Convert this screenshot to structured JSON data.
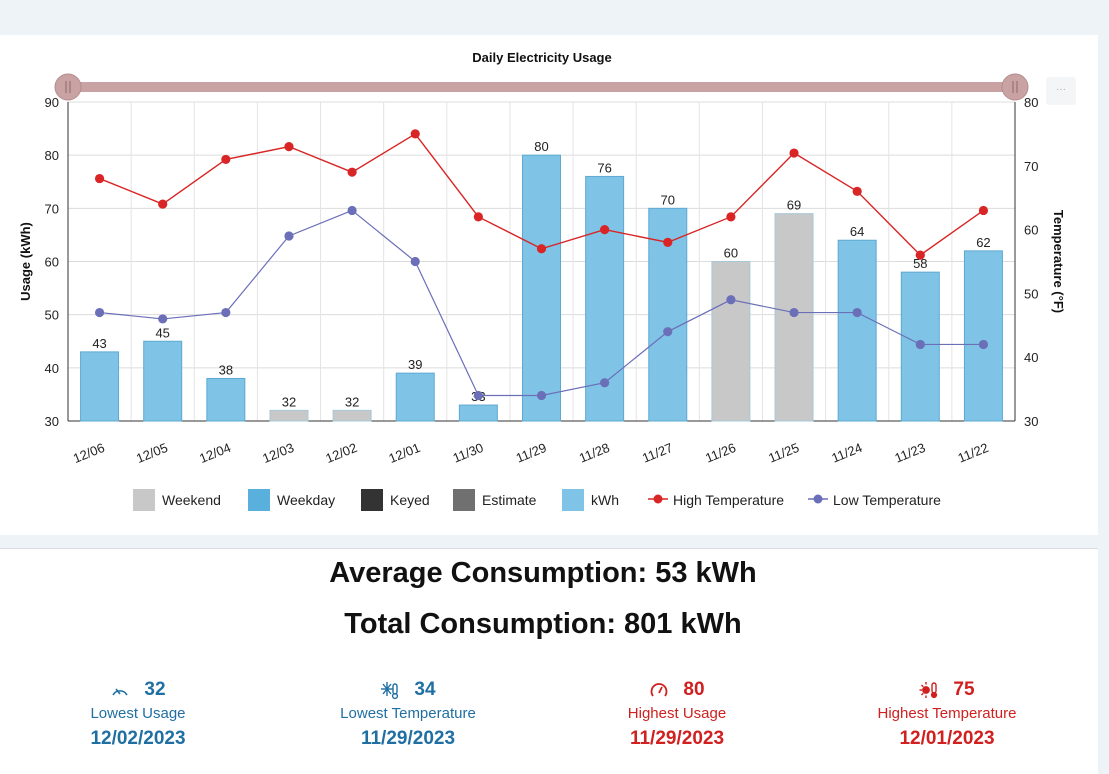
{
  "chart_data": {
    "type": "bar",
    "title": "Daily Electricity Usage",
    "ylabel": "Usage (kWh)",
    "y2label": "Temperature (°F)",
    "ylim": [
      30,
      90
    ],
    "y2lim": [
      30,
      80
    ],
    "yticks": [
      30,
      40,
      50,
      60,
      70,
      80,
      90
    ],
    "y2ticks": [
      30,
      40,
      50,
      60,
      70,
      80
    ],
    "categories": [
      "12/06",
      "12/05",
      "12/04",
      "12/03",
      "12/02",
      "12/01",
      "11/30",
      "11/29",
      "11/28",
      "11/27",
      "11/26",
      "11/25",
      "11/24",
      "11/23",
      "11/22"
    ],
    "values": [
      43,
      45,
      38,
      32,
      32,
      39,
      33,
      80,
      76,
      70,
      60,
      69,
      64,
      58,
      62
    ],
    "day_type": [
      "weekday",
      "weekday",
      "weekday",
      "weekend",
      "weekend",
      "weekday",
      "weekday",
      "weekday",
      "weekday",
      "weekday",
      "weekend",
      "weekend",
      "weekday",
      "weekday",
      "weekday"
    ],
    "series": [
      {
        "name": "High Temperature",
        "color": "#d92525",
        "values": [
          68,
          64,
          71,
          73,
          69,
          75,
          62,
          57,
          60,
          58,
          62,
          72,
          66,
          56,
          63
        ]
      },
      {
        "name": "Low Temperature",
        "color": "#6b6fb8",
        "values": [
          47,
          46,
          47,
          59,
          63,
          55,
          34,
          34,
          36,
          44,
          49,
          47,
          47,
          42,
          42
        ]
      }
    ],
    "legend": [
      {
        "label": "Weekend",
        "color": "#c8c8c8",
        "kind": "box"
      },
      {
        "label": "Weekday",
        "color": "#5ab0dc",
        "kind": "box"
      },
      {
        "label": "Keyed",
        "color": "#333333",
        "kind": "box"
      },
      {
        "label": "Estimate",
        "color": "#707070",
        "kind": "box"
      },
      {
        "label": "kWh",
        "color": "#7fc4e6",
        "kind": "box"
      },
      {
        "label": "High Temperature",
        "color": "#d92525",
        "kind": "line"
      },
      {
        "label": "Low Temperature",
        "color": "#6b6fb8",
        "kind": "line"
      }
    ],
    "colors": {
      "weekday": "#7fc4e6",
      "weekday_stroke": "#5ea9d2",
      "weekend": "#c8c8c8",
      "weekend_stroke": "#a7c8d8",
      "slider": "#c9a3a3"
    }
  },
  "menu_label": "···",
  "summary": {
    "average": "Average Consumption: 53 kWh",
    "total": "Total Consumption: 801 kWh"
  },
  "stats": {
    "lowest_usage": {
      "value": "32",
      "label": "Lowest Usage",
      "date": "12/02/2023",
      "icon": "gauge-low-icon"
    },
    "lowest_temp": {
      "value": "34",
      "label": "Lowest Temperature",
      "date": "11/29/2023",
      "icon": "snowflake-thermometer-icon"
    },
    "highest_usage": {
      "value": "80",
      "label": "Highest Usage",
      "date": "11/29/2023",
      "icon": "gauge-high-icon"
    },
    "highest_temp": {
      "value": "75",
      "label": "Highest Temperature",
      "date": "12/01/2023",
      "icon": "sun-thermometer-icon"
    }
  },
  "theme": {
    "blue": "#1f6fa3",
    "red": "#d0201f"
  }
}
